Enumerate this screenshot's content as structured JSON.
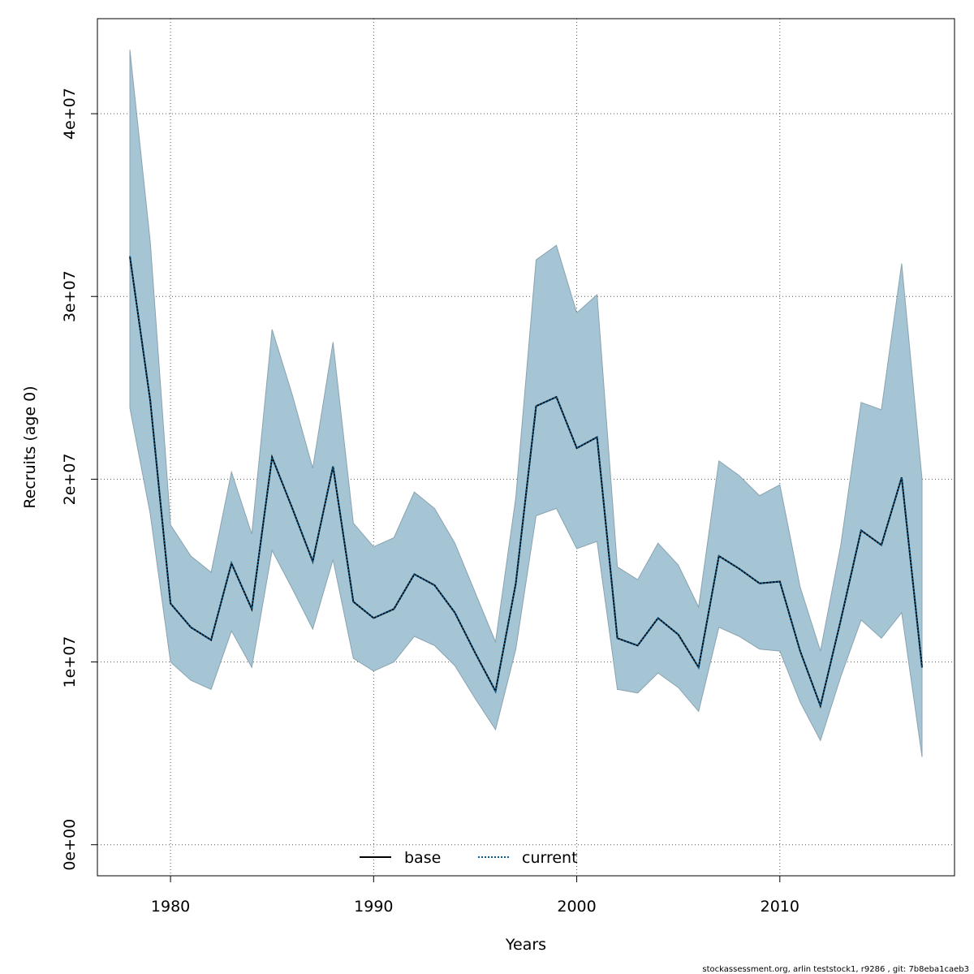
{
  "chart_data": {
    "type": "line",
    "xlabel": "Years",
    "ylabel": "Recruits (age 0)",
    "xlim": [
      1976.4,
      2018.6
    ],
    "ylim": [
      -1700000,
      45200000
    ],
    "x_ticks": [
      1980,
      1990,
      2000,
      2010
    ],
    "y_ticks": [
      0,
      10000000,
      20000000,
      30000000,
      40000000
    ],
    "y_tick_labels": [
      "0e+00",
      "1e+07",
      "2e+07",
      "3e+07",
      "4e+07"
    ],
    "grid": true,
    "legend_position": "bottom-center",
    "x": [
      1978,
      1979,
      1980,
      1981,
      1982,
      1983,
      1984,
      1985,
      1986,
      1987,
      1988,
      1989,
      1990,
      1991,
      1992,
      1993,
      1994,
      1995,
      1996,
      1997,
      1998,
      1999,
      2000,
      2001,
      2002,
      2003,
      2004,
      2005,
      2006,
      2007,
      2008,
      2009,
      2010,
      2011,
      2012,
      2013,
      2014,
      2015,
      2016,
      2017
    ],
    "series": [
      {
        "name": "base",
        "style": "solid",
        "color": "#000000",
        "values": [
          32200000,
          24300000,
          13200000,
          11900000,
          11200000,
          15400000,
          12900000,
          21200000,
          18400000,
          15500000,
          20700000,
          13300000,
          12400000,
          12900000,
          14800000,
          14200000,
          12700000,
          10500000,
          8400000,
          14300000,
          24000000,
          24500000,
          21700000,
          22300000,
          11300000,
          10900000,
          12400000,
          11500000,
          9700000,
          15800000,
          15100000,
          14300000,
          14400000,
          10600000,
          7600000,
          12300000,
          17200000,
          16400000,
          20100000,
          9700000
        ]
      },
      {
        "name": "current",
        "style": "dotted",
        "color": "#0a5d91",
        "values": [
          32200000,
          24300000,
          13200000,
          11900000,
          11200000,
          15400000,
          12900000,
          21200000,
          18400000,
          15500000,
          20700000,
          13300000,
          12400000,
          12900000,
          14800000,
          14200000,
          12700000,
          10500000,
          8400000,
          14300000,
          24000000,
          24500000,
          21700000,
          22300000,
          11300000,
          10900000,
          12400000,
          11500000,
          9700000,
          15800000,
          15100000,
          14300000,
          14400000,
          10600000,
          7600000,
          12300000,
          17200000,
          16400000,
          20100000,
          9700000
        ]
      }
    ],
    "band": {
      "color": "#a5c4d4",
      "upper": [
        43500000,
        33000000,
        17500000,
        15800000,
        14900000,
        20400000,
        17000000,
        28200000,
        24600000,
        20600000,
        27500000,
        17600000,
        16300000,
        16800000,
        19300000,
        18400000,
        16500000,
        13800000,
        11100000,
        19000000,
        32000000,
        32800000,
        29100000,
        30100000,
        15200000,
        14500000,
        16500000,
        15300000,
        13000000,
        21000000,
        20200000,
        19100000,
        19700000,
        14100000,
        10600000,
        16400000,
        24200000,
        23800000,
        31800000,
        20000000
      ],
      "lower": [
        23900000,
        18100000,
        10000000,
        9000000,
        8500000,
        11700000,
        9700000,
        16100000,
        14000000,
        11800000,
        15600000,
        10200000,
        9500000,
        10000000,
        11400000,
        10900000,
        9800000,
        8000000,
        6300000,
        10700000,
        18000000,
        18400000,
        16200000,
        16600000,
        8500000,
        8300000,
        9400000,
        8600000,
        7300000,
        11900000,
        11400000,
        10700000,
        10600000,
        7800000,
        5700000,
        9200000,
        12300000,
        11300000,
        12700000,
        4800000
      ]
    }
  },
  "footer": "stockassessment.org, arlin  teststock1, r9286 , git: 7b8eba1caeb3"
}
